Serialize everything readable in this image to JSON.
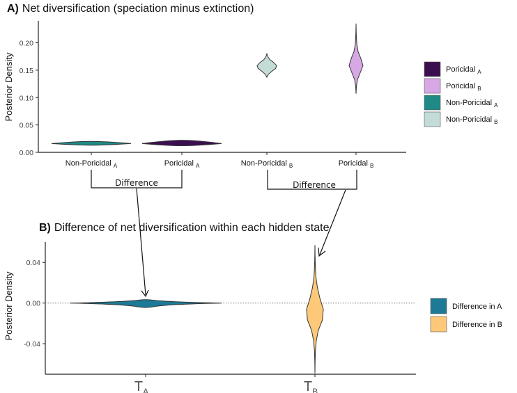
{
  "panel_a": {
    "title_prefix": "A)",
    "title_text": "Net diversification (speciation minus extinction)",
    "ylabel": "Posterior Density",
    "difference_label": "Difference"
  },
  "panel_b": {
    "title_prefix": "B)",
    "title_text": "Difference of net diversification within each hidden state",
    "ylabel": "Posterior Density"
  },
  "colors": {
    "poricidal_a": "#3b0f4f",
    "poricidal_b": "#d7a8e4",
    "non_poricidal_a": "#1f8a86",
    "non_poricidal_b": "#c4dcd8",
    "difference_a": "#1d7a96",
    "difference_b": "#fdc978"
  },
  "chart_data": [
    {
      "type": "violin",
      "title": "A) Net diversification (speciation minus extinction)",
      "ylabel": "Posterior Density",
      "ylim": [
        0.0,
        0.24
      ],
      "yticks": [
        "0.00",
        "0.05",
        "0.10",
        "0.15",
        "0.20"
      ],
      "ytick_values": [
        0.0,
        0.05,
        0.1,
        0.15,
        0.2
      ],
      "grid": false,
      "legend_position": "right",
      "legend": [
        {
          "main": "Poricidal",
          "sub": "A",
          "color": "#3b0f4f"
        },
        {
          "main": "Poricidal",
          "sub": "B",
          "color": "#d7a8e4"
        },
        {
          "main": "Non-Poricidal",
          "sub": "A",
          "color": "#1f8a86"
        },
        {
          "main": "Non-Poricidal",
          "sub": "B",
          "color": "#c4dcd8"
        }
      ],
      "categories": [
        {
          "main": "Non-Poricidal",
          "sub": "A"
        },
        {
          "main": "Poricidal",
          "sub": "A"
        },
        {
          "main": "Non-Poricidal",
          "sub": "B"
        },
        {
          "main": "Poricidal",
          "sub": "B"
        }
      ],
      "series": [
        {
          "category_index": 0,
          "color": "#1f8a86",
          "min": 0.013,
          "max": 0.02,
          "median": 0.016,
          "profile": [
            0,
            0.2,
            0.6,
            1,
            0.6,
            0.2,
            0
          ]
        },
        {
          "category_index": 1,
          "color": "#3b0f4f",
          "min": 0.012,
          "max": 0.022,
          "median": 0.016,
          "profile": [
            0,
            0.2,
            0.7,
            1,
            0.5,
            0.15,
            0
          ]
        },
        {
          "category_index": 2,
          "color": "#c4dcd8",
          "min": 0.137,
          "max": 0.18,
          "median": 0.159,
          "profile": [
            0,
            0.15,
            0.5,
            0.9,
            1,
            0.7,
            0.3,
            0.1,
            0
          ]
        },
        {
          "category_index": 3,
          "color": "#d7a8e4",
          "min": 0.107,
          "max": 0.235,
          "median": 0.16,
          "profile": [
            0,
            0.05,
            0.2,
            0.6,
            1,
            0.7,
            0.3,
            0.12,
            0.05,
            0.02,
            0
          ]
        }
      ],
      "annotations": [
        {
          "text": "Difference",
          "between": [
            0,
            1
          ]
        },
        {
          "text": "Difference",
          "between": [
            2,
            3
          ]
        }
      ]
    },
    {
      "type": "violin",
      "title": "B) Difference of net diversification within each hidden state",
      "ylabel": "Posterior Density",
      "ylim": [
        -0.07,
        0.06
      ],
      "yticks": [
        "0.04",
        "0.00",
        "-0.04"
      ],
      "ytick_values": [
        0.04,
        0.0,
        -0.04
      ],
      "reference_line": 0.0,
      "grid": false,
      "legend_position": "right",
      "legend": [
        {
          "text": "Difference in A",
          "color": "#1d7a96"
        },
        {
          "text": "Difference in B",
          "color": "#fdc978"
        }
      ],
      "categories": [
        {
          "main": "T",
          "sub": "A"
        },
        {
          "main": "T",
          "sub": "B"
        }
      ],
      "series": [
        {
          "category_index": 0,
          "color": "#1d7a96",
          "min": -0.004,
          "max": 0.003,
          "median": 0.0,
          "profile": [
            0,
            0.3,
            1,
            0.3,
            0
          ]
        },
        {
          "category_index": 1,
          "color": "#fdc978",
          "min": -0.069,
          "max": 0.057,
          "median": 0.0,
          "profile": [
            0,
            0.02,
            0.05,
            0.15,
            0.4,
            0.9,
            1,
            0.6,
            0.3,
            0.12,
            0.05,
            0.02,
            0
          ]
        }
      ]
    }
  ]
}
